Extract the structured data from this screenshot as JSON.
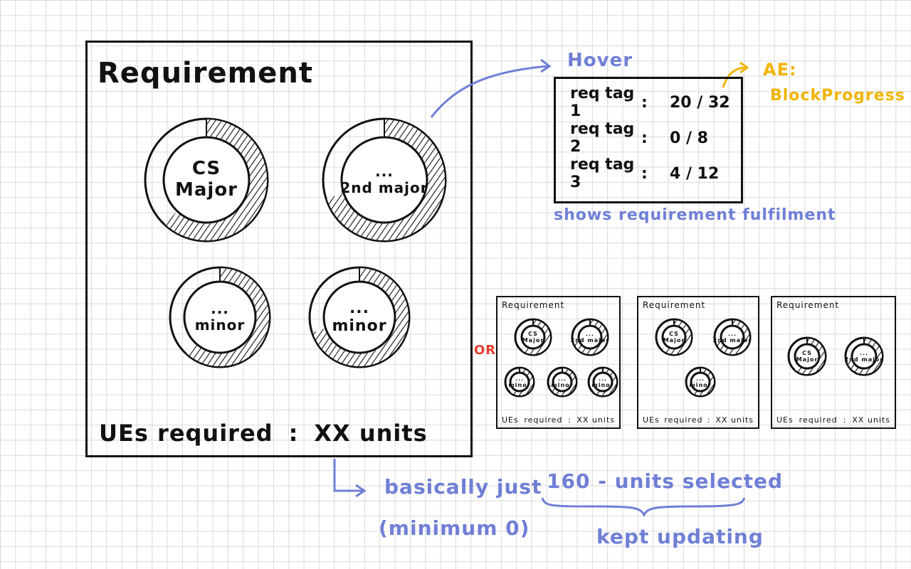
{
  "main": {
    "title": "Requirement",
    "rings": [
      {
        "line1": "CS",
        "line2": "Major",
        "progress": 0.62
      },
      {
        "line1": "...",
        "line2": "2nd major",
        "progress": 0.7
      },
      {
        "line1": "...",
        "line2": "minor",
        "progress": 0.62
      },
      {
        "line1": "...",
        "line2": "minor",
        "progress": 0.7
      }
    ],
    "footer_label": "UEs required",
    "footer_sep": ":",
    "footer_value": "XX units"
  },
  "hover": {
    "label": "Hover",
    "rows": [
      {
        "name": "req tag 1",
        "sep": ":",
        "value": "20 / 32"
      },
      {
        "name": "req tag 2",
        "sep": ":",
        "value": "0 / 8"
      },
      {
        "name": "req tag 3",
        "sep": ":",
        "value": "4 / 12"
      }
    ],
    "caption": "shows requirement fulfilment",
    "ae_label": "AE:",
    "ae_component": "BlockProgress"
  },
  "note": {
    "line1": "basically just",
    "line2": "(minimum 0)",
    "formula": "160 - units selected",
    "kept": "kept updating"
  },
  "or_label": "OR",
  "variants": [
    {
      "title": "Requirement",
      "footer_label": "UEs",
      "footer_mid": "required",
      "footer_sep": ":",
      "footer_value": "XX units",
      "rings": [
        {
          "line1": "CS",
          "line2": "Major"
        },
        {
          "line1": "...",
          "line2": "2nd major"
        },
        {
          "line1": "...",
          "line2": "minor"
        },
        {
          "line1": "...",
          "line2": "minor"
        },
        {
          "line1": "...",
          "line2": "minor"
        }
      ]
    },
    {
      "title": "Requirement",
      "footer_label": "UEs",
      "footer_mid": "required",
      "footer_sep": ":",
      "footer_value": "XX units",
      "rings": [
        {
          "line1": "CS",
          "line2": "Major"
        },
        {
          "line1": "...",
          "line2": "2nd major"
        },
        {
          "line1": "...",
          "line2": "minor"
        }
      ]
    },
    {
      "title": "Requirement",
      "footer_label": "UEs",
      "footer_mid": "required",
      "footer_sep": ":",
      "footer_value": "XX units",
      "rings": [
        {
          "line1": "CS",
          "line2": "Major"
        },
        {
          "line1": "...",
          "line2": "2nd major"
        }
      ]
    }
  ]
}
